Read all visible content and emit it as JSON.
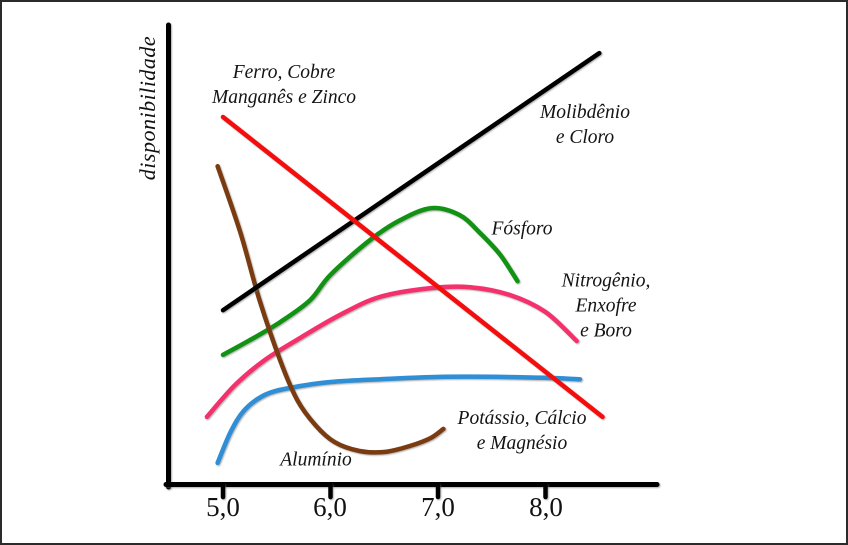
{
  "window": {
    "background": "#ffffff",
    "frame_border_color": "#2b2b2b"
  },
  "chart_data": {
    "type": "line",
    "title": "",
    "xlabel": "",
    "ylabel": "disponibilidade",
    "x_range": [
      4.45,
      9.05
    ],
    "y_range": [
      0,
      100
    ],
    "grid": false,
    "legend_position": "inline-annotations",
    "axis_color": "#000000",
    "x_ticks": [
      {
        "label": "5,0",
        "value": 5.0
      },
      {
        "label": "6,0",
        "value": 6.0
      },
      {
        "label": "7,0",
        "value": 7.0
      },
      {
        "label": "8,0",
        "value": 8.0
      }
    ],
    "series": [
      {
        "name": "Ferro, Cobre Manganês e Zinco",
        "slug": "ferro-cobre-manganes-zinco",
        "color": "#f50d0d",
        "points": [
          [
            5.0,
            80.0
          ],
          [
            8.53,
            14.8
          ]
        ]
      },
      {
        "name": "Molibdênio e Cloro",
        "slug": "molibdenio-cloro",
        "color": "#000000",
        "points": [
          [
            5.0,
            38.0
          ],
          [
            8.5,
            93.9
          ]
        ]
      },
      {
        "name": "Fósforo",
        "slug": "fosforo",
        "color": "#119213",
        "points": [
          [
            5.0,
            28.3
          ],
          [
            5.25,
            31.5
          ],
          [
            5.53,
            35.4
          ],
          [
            5.81,
            40.2
          ],
          [
            6.0,
            45.7
          ],
          [
            6.37,
            53.3
          ],
          [
            6.65,
            57.6
          ],
          [
            6.94,
            60.2
          ],
          [
            7.2,
            58.7
          ],
          [
            7.39,
            54.8
          ],
          [
            7.58,
            50.0
          ],
          [
            7.74,
            44.3
          ]
        ]
      },
      {
        "name": "Nitrogênio, Enxofre e Boro",
        "slug": "nitrogenio-enxofre-boro",
        "color": "#f5316d",
        "points": [
          [
            4.85,
            14.8
          ],
          [
            5.11,
            21.7
          ],
          [
            5.39,
            27.2
          ],
          [
            5.72,
            32.0
          ],
          [
            6.09,
            37.0
          ],
          [
            6.46,
            40.9
          ],
          [
            6.93,
            42.8
          ],
          [
            7.3,
            43.0
          ],
          [
            7.67,
            41.3
          ],
          [
            8.0,
            37.6
          ],
          [
            8.29,
            31.3
          ]
        ]
      },
      {
        "name": "Potássio, Cálcio e Magnésio",
        "slug": "potassio-calcio-magnesio",
        "color": "#2e8ed6",
        "points": [
          [
            4.95,
            4.8
          ],
          [
            5.07,
            11.5
          ],
          [
            5.2,
            16.3
          ],
          [
            5.39,
            19.6
          ],
          [
            5.62,
            21.1
          ],
          [
            6.0,
            22.4
          ],
          [
            6.46,
            23.0
          ],
          [
            7.02,
            23.5
          ],
          [
            7.58,
            23.5
          ],
          [
            8.0,
            23.3
          ],
          [
            8.32,
            23.0
          ]
        ]
      },
      {
        "name": "Alumínio",
        "slug": "aluminio",
        "color": "#7a3b10",
        "points": [
          [
            4.95,
            69.3
          ],
          [
            5.16,
            55.0
          ],
          [
            5.34,
            40.2
          ],
          [
            5.53,
            27.2
          ],
          [
            5.69,
            18.5
          ],
          [
            5.86,
            13.0
          ],
          [
            6.04,
            9.3
          ],
          [
            6.27,
            7.4
          ],
          [
            6.51,
            7.2
          ],
          [
            6.74,
            8.5
          ],
          [
            6.93,
            10.2
          ],
          [
            7.05,
            12.2
          ]
        ]
      }
    ],
    "annotations": {
      "ferro": {
        "lines": [
          "Ferro, Cobre",
          "Manganês e Zinco"
        ]
      },
      "molibdenio": {
        "lines": [
          "Molibdênio",
          "e Cloro"
        ]
      },
      "fosforo": {
        "lines": [
          "Fósforo"
        ]
      },
      "nitrogenio": {
        "lines": [
          "Nitrogênio,",
          "Enxofre",
          "e Boro"
        ]
      },
      "potassio": {
        "lines": [
          "Potássio, Cálcio",
          "e Magnésio"
        ]
      },
      "aluminio": {
        "lines": [
          "Alumínio"
        ]
      }
    }
  }
}
